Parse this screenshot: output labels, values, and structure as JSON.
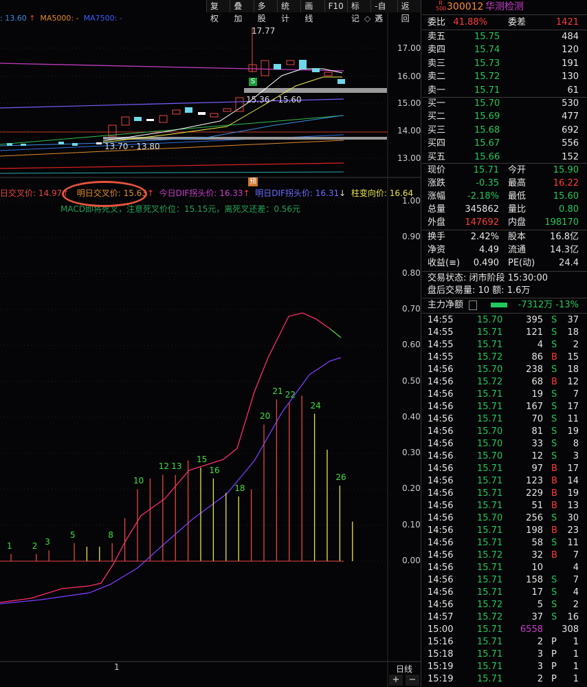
{
  "toolbar": [
    "复权",
    "叠加",
    "多股",
    "统计",
    "画线",
    "F10",
    "标记",
    "-自选",
    "返回"
  ],
  "legend": {
    "ma_a": ": 13.60",
    "ma5000": "MA5000: -",
    "ma7500": "MA7500: -"
  },
  "chart_labels": {
    "high": "17.77",
    "range_hi": "15.36 - 15.60",
    "range_lo": "13.70 - 13.80",
    "s_mark": "S",
    "yu_mark": "预",
    "x_tick": "1",
    "period_label": "日线"
  },
  "price_axis": [
    "17.00",
    "16.00",
    "15.00",
    "14.00",
    "13.00"
  ],
  "macd_axis": [
    "1.00",
    "0.90",
    "0.80",
    "0.70",
    "0.60",
    "0.50",
    "0.40",
    "0.30",
    "0.20",
    "0.10",
    "0.00"
  ],
  "mid_legend": {
    "a": "日交叉价: 14.97",
    "b": "明日交叉价: 15.63",
    "c": "今日DIF拐头价: 16.33",
    "d": "明日DIF拐头价: 16.31",
    "e": "柱变向价: 16.64",
    "line2": "MACD即将死叉，注意死叉价位：15.15元，离死叉还差：0.56元"
  },
  "macd_bars": [
    {
      "label": "1",
      "v": 0.02,
      "c": "r"
    },
    {
      "label": "",
      "v": 0.0,
      "c": "y"
    },
    {
      "label": "2",
      "v": 0.02,
      "c": "r"
    },
    {
      "label": "3",
      "v": 0.03,
      "c": "r"
    },
    {
      "label": "",
      "v": 0.0,
      "c": "y"
    },
    {
      "label": "5",
      "v": 0.05,
      "c": "r"
    },
    {
      "label": "",
      "v": 0.04,
      "c": "y"
    },
    {
      "label": "",
      "v": 0.04,
      "c": "y"
    },
    {
      "label": "8",
      "v": 0.05,
      "c": "r"
    },
    {
      "label": "",
      "v": 0.12,
      "c": "r"
    },
    {
      "label": "10",
      "v": 0.2,
      "c": "r"
    },
    {
      "label": "",
      "v": 0.23,
      "c": "r"
    },
    {
      "label": "12",
      "v": 0.24,
      "c": "r"
    },
    {
      "label": "13",
      "v": 0.24,
      "c": "r"
    },
    {
      "label": "",
      "v": 0.28,
      "c": "r"
    },
    {
      "label": "15",
      "v": 0.26,
      "c": "y"
    },
    {
      "label": "16",
      "v": 0.23,
      "c": "y"
    },
    {
      "label": "",
      "v": 0.19,
      "c": "y"
    },
    {
      "label": "18",
      "v": 0.18,
      "c": "y"
    },
    {
      "label": "",
      "v": 0.2,
      "c": "r"
    },
    {
      "label": "20",
      "v": 0.38,
      "c": "r"
    },
    {
      "label": "21",
      "v": 0.45,
      "c": "r"
    },
    {
      "label": "22",
      "v": 0.44,
      "c": "r"
    },
    {
      "label": "",
      "v": 0.46,
      "c": "r"
    },
    {
      "label": "24",
      "v": 0.41,
      "c": "y"
    },
    {
      "label": "",
      "v": 0.31,
      "c": "y"
    },
    {
      "label": "26",
      "v": 0.21,
      "c": "y"
    },
    {
      "label": "",
      "v": 0.11,
      "c": "y"
    }
  ],
  "quote": {
    "code": "300012",
    "name": "华测检测",
    "badge_top": "R",
    "badge_bot": "500",
    "weibi_label": "委比",
    "weibi": "41.88%",
    "weicha_label": "委差",
    "weicha": "1421",
    "asks": [
      {
        "label": "卖五",
        "price": "15.75",
        "vol": "484"
      },
      {
        "label": "卖四",
        "price": "15.74",
        "vol": "120"
      },
      {
        "label": "卖三",
        "price": "15.73",
        "vol": "191"
      },
      {
        "label": "卖二",
        "price": "15.72",
        "vol": "130"
      },
      {
        "label": "卖一",
        "price": "15.71",
        "vol": "61"
      }
    ],
    "bids": [
      {
        "label": "买一",
        "price": "15.70",
        "vol": "530"
      },
      {
        "label": "买二",
        "price": "15.69",
        "vol": "477"
      },
      {
        "label": "买三",
        "price": "15.68",
        "vol": "692"
      },
      {
        "label": "买四",
        "price": "15.67",
        "vol": "556"
      },
      {
        "label": "买五",
        "price": "15.66",
        "vol": "152"
      }
    ],
    "stats": [
      {
        "l1": "现价",
        "v1": "15.71",
        "c1": "green",
        "l2": "今开",
        "v2": "15.90",
        "c2": "green"
      },
      {
        "l1": "涨跌",
        "v1": "-0.35",
        "c1": "green",
        "l2": "最高",
        "v2": "16.22",
        "c2": "red"
      },
      {
        "l1": "涨幅",
        "v1": "-2.18%",
        "c1": "green",
        "l2": "最低",
        "v2": "15.60",
        "c2": "green"
      },
      {
        "l1": "总量",
        "v1": "345862",
        "c1": "white",
        "l2": "量比",
        "v2": "0.80",
        "c2": "green"
      },
      {
        "l1": "外盘",
        "v1": "147692",
        "c1": "red",
        "l2": "内盘",
        "v2": "198170",
        "c2": "green"
      }
    ],
    "stats2": [
      {
        "l1": "换手",
        "v1": "2.42%",
        "l2": "股本",
        "v2": "16.8亿"
      },
      {
        "l1": "净资",
        "v1": "4.49",
        "l2": "流通",
        "v2": "14.3亿"
      },
      {
        "l1": "收益(≡)",
        "v1": "0.490",
        "l2": "PE(动)",
        "v2": "24.4"
      }
    ],
    "status": "交易状态: 闭市阶段 15:30:00",
    "after_hours": "盘后交易量: 10  额: 1.6万",
    "net_flow_label": "主力净额",
    "net_flow_value": "-7312万 -13%",
    "ticks": [
      {
        "t": "14:55",
        "p": "15.70",
        "pc": "green",
        "v": "395",
        "f": "S",
        "n": "37"
      },
      {
        "t": "14:55",
        "p": "15.71",
        "pc": "green",
        "v": "121",
        "f": "S",
        "n": "18"
      },
      {
        "t": "14:55",
        "p": "15.71",
        "pc": "green",
        "v": "4",
        "f": "S",
        "n": "2"
      },
      {
        "t": "14:55",
        "p": "15.72",
        "pc": "green",
        "v": "86",
        "f": "B",
        "n": "15"
      },
      {
        "t": "14:56",
        "p": "15.70",
        "pc": "green",
        "v": "238",
        "f": "S",
        "n": "18"
      },
      {
        "t": "14:56",
        "p": "15.72",
        "pc": "green",
        "v": "68",
        "f": "B",
        "n": "12"
      },
      {
        "t": "14:56",
        "p": "15.71",
        "pc": "green",
        "v": "19",
        "f": "S",
        "n": "7"
      },
      {
        "t": "14:56",
        "p": "15.71",
        "pc": "green",
        "v": "167",
        "f": "S",
        "n": "17"
      },
      {
        "t": "14:56",
        "p": "15.71",
        "pc": "green",
        "v": "70",
        "f": "S",
        "n": "11"
      },
      {
        "t": "14:56",
        "p": "15.70",
        "pc": "green",
        "v": "81",
        "f": "S",
        "n": "19"
      },
      {
        "t": "14:56",
        "p": "15.70",
        "pc": "green",
        "v": "33",
        "f": "S",
        "n": "8"
      },
      {
        "t": "14:56",
        "p": "15.70",
        "pc": "green",
        "v": "12",
        "f": "S",
        "n": "3"
      },
      {
        "t": "14:56",
        "p": "15.71",
        "pc": "green",
        "v": "97",
        "f": "B",
        "n": "17"
      },
      {
        "t": "14:56",
        "p": "15.71",
        "pc": "green",
        "v": "123",
        "f": "B",
        "n": "14"
      },
      {
        "t": "14:56",
        "p": "15.71",
        "pc": "green",
        "v": "229",
        "f": "B",
        "n": "19"
      },
      {
        "t": "14:56",
        "p": "15.71",
        "pc": "green",
        "v": "51",
        "f": "B",
        "n": "13"
      },
      {
        "t": "14:56",
        "p": "15.70",
        "pc": "green",
        "v": "256",
        "f": "S",
        "n": "30"
      },
      {
        "t": "14:56",
        "p": "15.71",
        "pc": "green",
        "v": "198",
        "f": "B",
        "n": "23"
      },
      {
        "t": "14:56",
        "p": "15.71",
        "pc": "green",
        "v": "58",
        "f": "S",
        "n": "11"
      },
      {
        "t": "14:56",
        "p": "15.72",
        "pc": "green",
        "v": "32",
        "f": "B",
        "n": "7"
      },
      {
        "t": "14:56",
        "p": "15.71",
        "pc": "green",
        "v": "10",
        "f": "",
        "n": "4"
      },
      {
        "t": "14:56",
        "p": "15.71",
        "pc": "green",
        "v": "158",
        "f": "S",
        "n": "7"
      },
      {
        "t": "14:56",
        "p": "15.71",
        "pc": "green",
        "v": "17",
        "f": "S",
        "n": "4"
      },
      {
        "t": "14:56",
        "p": "15.72",
        "pc": "green",
        "v": "5",
        "f": "S",
        "n": "2"
      },
      {
        "t": "14:57",
        "p": "15.72",
        "pc": "green",
        "v": "37",
        "f": "S",
        "n": "16"
      },
      {
        "t": "15:00",
        "p": "15.71",
        "pc": "green",
        "v": "6558",
        "f": "",
        "n": "308"
      },
      {
        "t": "15:16",
        "p": "15.71",
        "pc": "green",
        "v": "2",
        "f": "P",
        "n": "1"
      },
      {
        "t": "15:18",
        "p": "15.71",
        "pc": "green",
        "v": "3",
        "f": "P",
        "n": "1"
      },
      {
        "t": "15:19",
        "p": "15.71",
        "pc": "green",
        "v": "3",
        "f": "P",
        "n": "1"
      },
      {
        "t": "15:19",
        "p": "15.71",
        "pc": "green",
        "v": "2",
        "f": "P",
        "n": "1"
      }
    ]
  }
}
